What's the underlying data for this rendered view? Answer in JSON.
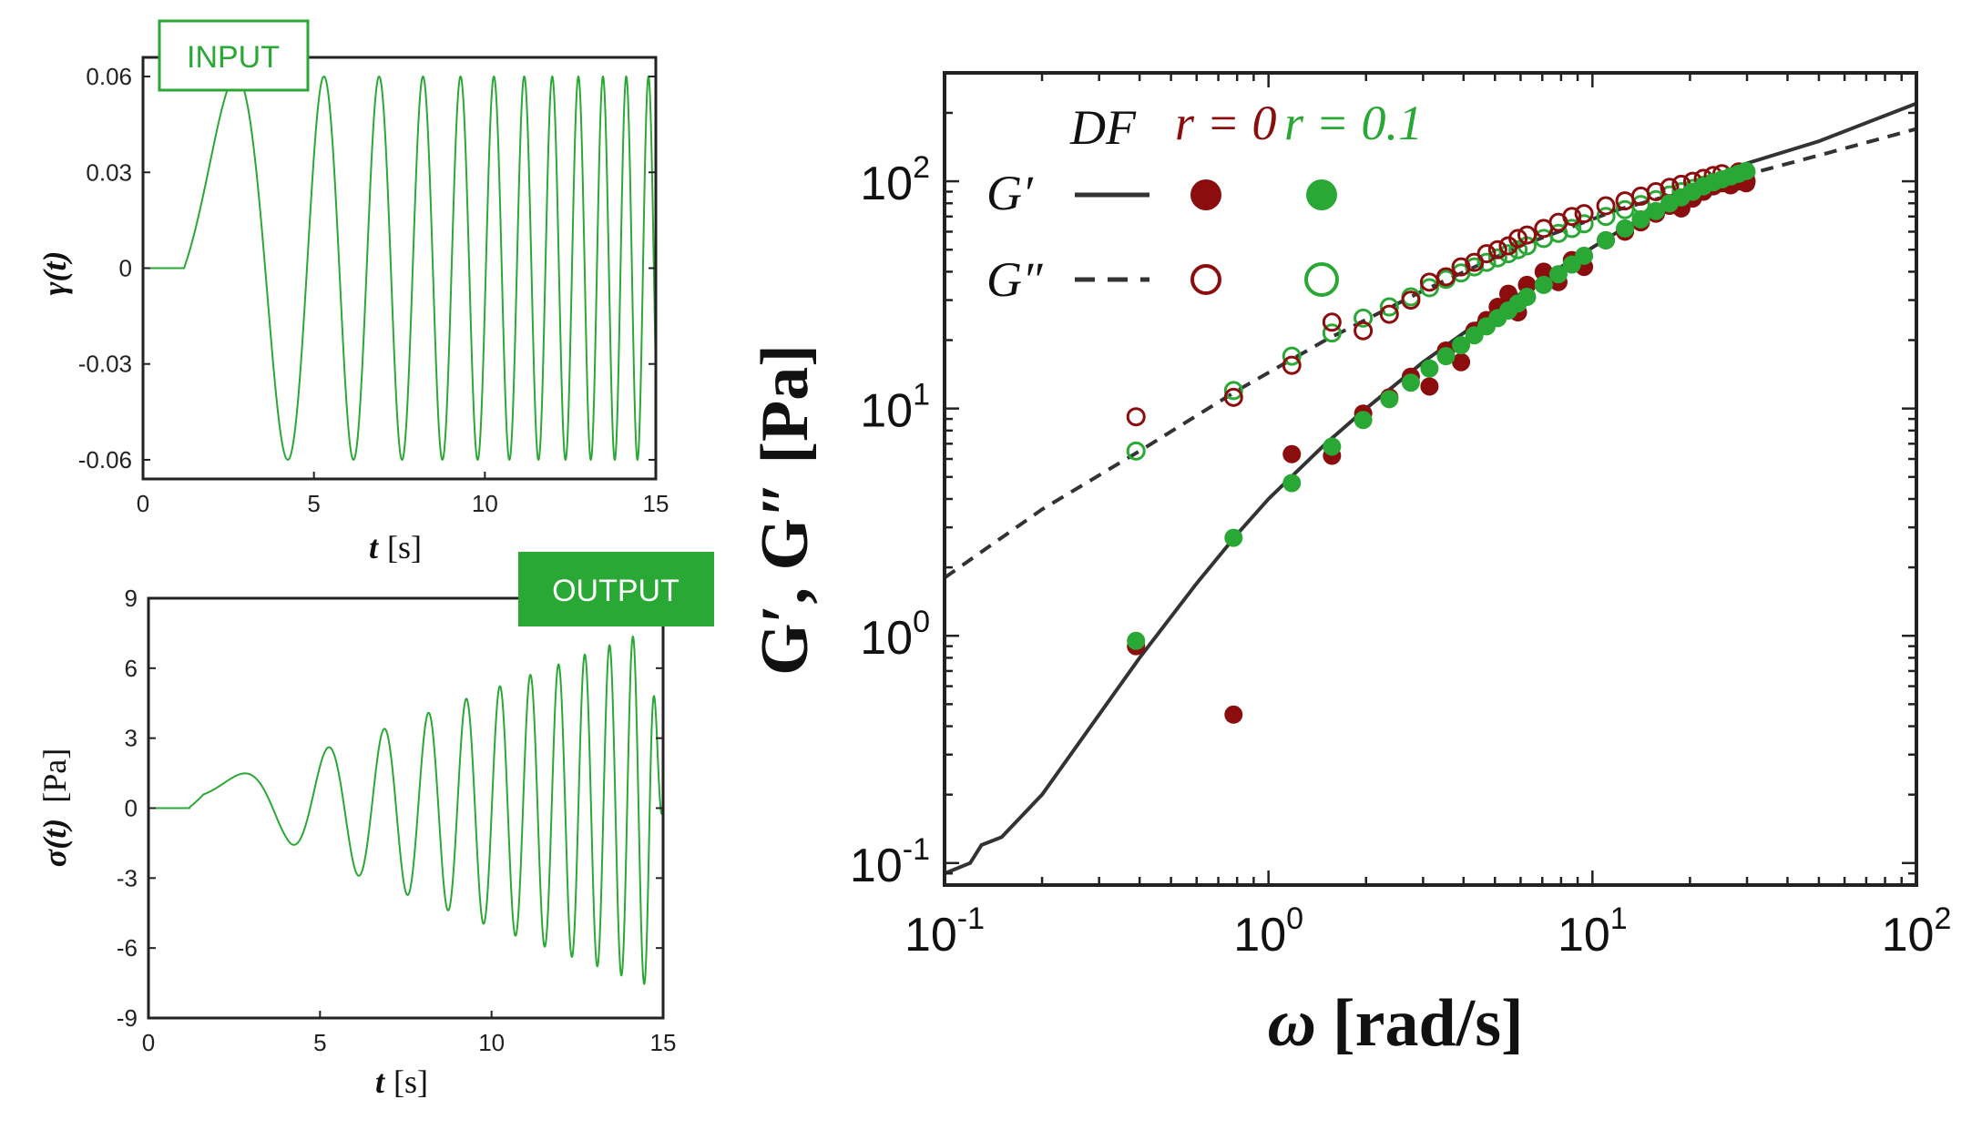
{
  "colors": {
    "green": "#2aa835",
    "dark_red": "#8b0d0d",
    "fit": "#333333"
  },
  "chart_data": [
    {
      "type": "line",
      "panel": "input",
      "badge": "INPUT",
      "xlabel_var": "t",
      "xlabel_unit": "[s]",
      "ylabel_var": "γ(t)",
      "xlim": [
        0,
        15
      ],
      "ylim": [
        -0.066,
        0.066
      ],
      "xticks": [
        "0",
        "5",
        "10",
        "15"
      ],
      "yticks": [
        "0.06",
        "0.03",
        "0",
        "-0.03",
        "-0.06"
      ],
      "series": [
        {
          "name": "strain chirp",
          "description": "zero until t=1.2 s, then chirp with amplitude 0.06 and frequency rising from ~0.1 Hz to ~1.6 Hz at t=15 s",
          "amplitude": 0.06,
          "t_start": 1.2,
          "t_end": 15
        }
      ]
    },
    {
      "type": "line",
      "panel": "output",
      "badge": "OUTPUT",
      "xlabel_var": "t",
      "xlabel_unit": "[s]",
      "ylabel_var": "σ(t)",
      "ylabel_unit": "[Pa]",
      "xlim": [
        0,
        15
      ],
      "ylim": [
        -9,
        9
      ],
      "xticks": [
        "0",
        "5",
        "10",
        "15"
      ],
      "yticks": [
        "9",
        "6",
        "3",
        "0",
        "-3",
        "-6",
        "-9"
      ],
      "series": [
        {
          "name": "stress response",
          "description": "small offset ~0.4 Pa near t=1.5–4 s, then oscillation in phase with the chirp with amplitude growing from ~1.5 Pa to ~8 Pa"
        }
      ]
    },
    {
      "type": "scatter",
      "panel": "moduli",
      "xlabel_var": "ω",
      "xlabel_unit": "[rad/s]",
      "ylabel": "G′, G″ [Pa]",
      "xscale": "log",
      "yscale": "log",
      "xlim": [
        0.1,
        100
      ],
      "ylim": [
        0.08,
        300
      ],
      "xticks": [
        {
          "base": "10",
          "exp": "-1"
        },
        {
          "base": "10",
          "exp": "0"
        },
        {
          "base": "10",
          "exp": "1"
        },
        {
          "base": "10",
          "exp": "2"
        }
      ],
      "yticks": [
        {
          "base": "10",
          "exp": "-1"
        },
        {
          "base": "10",
          "exp": "0"
        },
        {
          "base": "10",
          "exp": "1"
        },
        {
          "base": "10",
          "exp": "2"
        }
      ],
      "legend": {
        "col_fit": "DF",
        "col_r0": "r = 0",
        "col_r01": "r = 0.1",
        "row_gp": "G′",
        "row_gpp": "G″",
        "placement": "top-left"
      },
      "fits": {
        "G_prime": {
          "omega": [
            0.1,
            0.12,
            0.13,
            0.15,
            0.2,
            0.3,
            0.4,
            0.6,
            0.8,
            1.0,
            1.5,
            2.0,
            3.0,
            5.0,
            8.0,
            12.0,
            20.0,
            30.0,
            50.0,
            100.0
          ],
          "G": [
            0.09,
            0.1,
            0.12,
            0.13,
            0.2,
            0.45,
            0.8,
            1.7,
            2.8,
            4.0,
            7.0,
            10.0,
            16.0,
            27.0,
            42.0,
            60.0,
            90.0,
            120.0,
            150.0,
            220.0
          ]
        },
        "G_double_prime": {
          "omega": [
            0.1,
            0.2,
            0.4,
            0.8,
            1.5,
            3.0,
            6.0,
            12.0,
            25.0,
            50.0,
            100.0
          ],
          "G": [
            1.8,
            3.6,
            6.5,
            12.0,
            20.0,
            33.0,
            52.0,
            75.0,
            100.0,
            130.0,
            170.0
          ]
        }
      },
      "series": [
        {
          "name": "G′ r=0",
          "style": "filled",
          "color": "dark_red",
          "omega": [
            0.39,
            0.78,
            1.18,
            1.57,
            1.96,
            2.36,
            2.75,
            3.14,
            3.53,
            3.93,
            4.32,
            4.71,
            5.1,
            5.5,
            5.89,
            6.28,
            7.07,
            7.85,
            8.64,
            9.42,
            11.0,
            12.6,
            14.1,
            15.7,
            17.3,
            18.8,
            20.4,
            22.0,
            23.6,
            25.1,
            26.7,
            28.3,
            29.8
          ],
          "G": [
            0.9,
            0.45,
            6.3,
            6.2,
            9.5,
            11.2,
            13.8,
            12.5,
            18.0,
            16.0,
            22.0,
            24.5,
            28.0,
            32.0,
            26.5,
            35.0,
            40.0,
            36.0,
            45.0,
            42.0,
            55.0,
            60.0,
            66.0,
            72.0,
            78.0,
            76.0,
            84.0,
            90.0,
            95.0,
            98.0,
            96.0,
            100.0,
            98.0
          ]
        },
        {
          "name": "G′ r=0.1",
          "style": "filled",
          "color": "green",
          "omega": [
            0.39,
            0.78,
            1.18,
            1.57,
            1.96,
            2.36,
            2.75,
            3.14,
            3.53,
            3.93,
            4.32,
            4.71,
            5.1,
            5.5,
            5.89,
            6.28,
            7.07,
            7.85,
            8.64,
            9.42,
            11.0,
            12.6,
            14.1,
            15.7,
            17.3,
            18.8,
            20.4,
            22.0,
            23.6,
            25.1,
            26.7,
            28.3,
            29.8
          ],
          "G": [
            0.95,
            2.7,
            4.7,
            6.8,
            8.9,
            11.0,
            13.0,
            15.0,
            17.0,
            19.0,
            21.0,
            23.0,
            25.0,
            27.0,
            29.0,
            31.0,
            35.0,
            39.0,
            43.0,
            47.0,
            55.0,
            62.0,
            68.0,
            74.0,
            80.0,
            85.0,
            90.0,
            95.0,
            99.0,
            102.0,
            105.0,
            108.0,
            111.0
          ]
        },
        {
          "name": "G″ r=0",
          "style": "open",
          "color": "dark_red",
          "omega": [
            0.39,
            0.78,
            1.18,
            1.57,
            1.96,
            2.36,
            2.75,
            3.14,
            3.53,
            3.93,
            4.32,
            4.71,
            5.1,
            5.5,
            5.89,
            6.28,
            7.07,
            7.85,
            8.64,
            9.42,
            11.0,
            12.6,
            14.1,
            15.7,
            17.3,
            18.8,
            20.4,
            22.0,
            23.6,
            25.1,
            26.7,
            28.3,
            29.8
          ],
          "G": [
            9.2,
            11.2,
            15.5,
            24.0,
            22.0,
            26.0,
            30.0,
            36.0,
            38.0,
            42.0,
            44.0,
            48.0,
            50.0,
            52.0,
            56.0,
            58.0,
            62.0,
            66.0,
            70.0,
            72.0,
            78.0,
            82.0,
            86.0,
            90.0,
            94.0,
            97.0,
            100.0,
            103.0,
            106.0,
            108.0,
            104.0,
            110.0,
            100.0
          ]
        },
        {
          "name": "G″ r=0.1",
          "style": "open",
          "color": "green",
          "omega": [
            0.39,
            0.78,
            1.18,
            1.57,
            1.96,
            2.36,
            2.75,
            3.14,
            3.53,
            3.93,
            4.32,
            4.71,
            5.1,
            5.5,
            5.89,
            6.28,
            7.07,
            7.85,
            8.64,
            9.42,
            11.0,
            12.6,
            14.1,
            15.7,
            17.3,
            18.8,
            20.4,
            22.0,
            23.6,
            25.1,
            26.7,
            28.3,
            29.8
          ],
          "G": [
            6.5,
            12.0,
            17.0,
            21.5,
            25.0,
            28.0,
            31.0,
            34.0,
            37.0,
            39.5,
            42.0,
            44.0,
            46.0,
            48.0,
            50.0,
            52.0,
            56.0,
            59.0,
            62.0,
            65.0,
            70.0,
            75.0,
            79.0,
            83.0,
            87.0,
            90.0,
            93.0,
            96.0,
            99.0,
            101.0,
            104.0,
            107.0,
            110.0
          ]
        }
      ]
    }
  ]
}
